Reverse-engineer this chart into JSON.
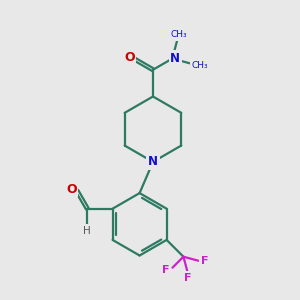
{
  "bg_color": "#e8e8e8",
  "bond_color": "#2d7a62",
  "N_color": "#1010cc",
  "O_color": "#cc0000",
  "F_color": "#cc22cc",
  "H_color": "#555555",
  "line_width": 1.6,
  "dbl_sep": 0.09,
  "figsize": [
    3.0,
    3.0
  ],
  "dpi": 100,
  "xlim": [
    0,
    10
  ],
  "ylim": [
    0,
    10
  ]
}
